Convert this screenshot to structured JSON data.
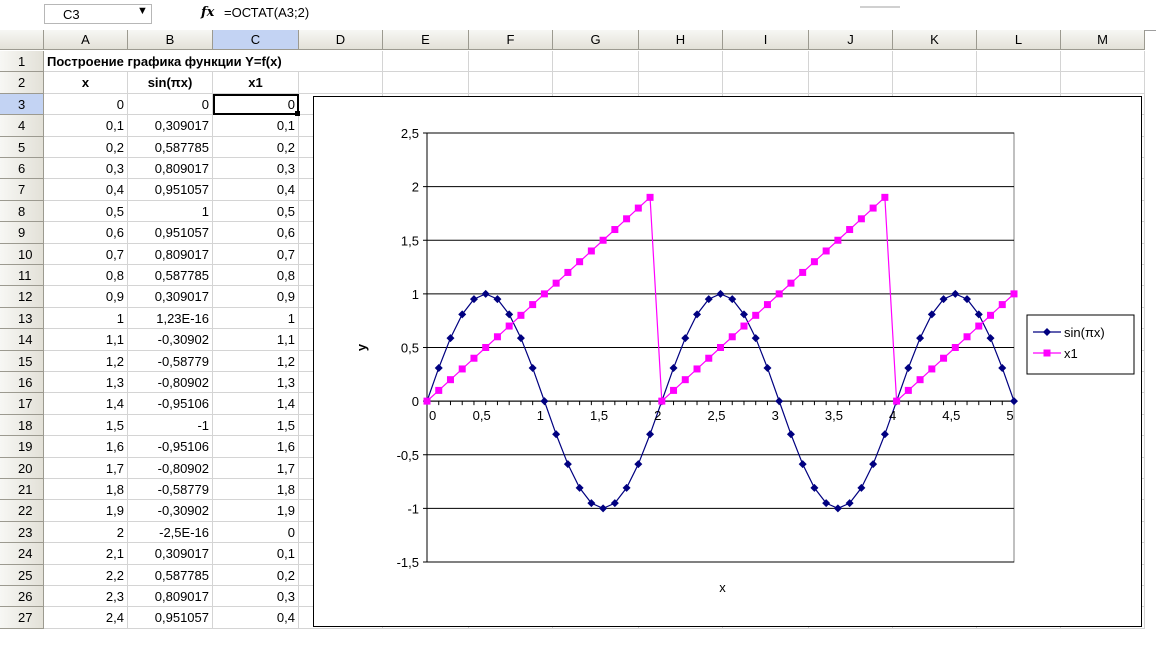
{
  "formula_bar": {
    "name_box": "C3",
    "dropdown_icon": "▼",
    "fx_label": "fx",
    "formula": "=ОСТАТ(A3;2)"
  },
  "columns": [
    "A",
    "B",
    "C",
    "D",
    "E",
    "F",
    "G",
    "H",
    "I",
    "J",
    "K",
    "L",
    "M"
  ],
  "selected_column": "C",
  "rows": [
    {
      "n": "1",
      "a": "Построение графика функции Y=f(x)",
      "b": "",
      "c": ""
    },
    {
      "n": "2",
      "a": "x",
      "b": "sin(πx)",
      "c": "x1"
    },
    {
      "n": "3",
      "a": "0",
      "b": "0",
      "c": "0"
    },
    {
      "n": "4",
      "a": "0,1",
      "b": "0,309017",
      "c": "0,1"
    },
    {
      "n": "5",
      "a": "0,2",
      "b": "0,587785",
      "c": "0,2"
    },
    {
      "n": "6",
      "a": "0,3",
      "b": "0,809017",
      "c": "0,3"
    },
    {
      "n": "7",
      "a": "0,4",
      "b": "0,951057",
      "c": "0,4"
    },
    {
      "n": "8",
      "a": "0,5",
      "b": "1",
      "c": "0,5"
    },
    {
      "n": "9",
      "a": "0,6",
      "b": "0,951057",
      "c": "0,6"
    },
    {
      "n": "10",
      "a": "0,7",
      "b": "0,809017",
      "c": "0,7"
    },
    {
      "n": "11",
      "a": "0,8",
      "b": "0,587785",
      "c": "0,8"
    },
    {
      "n": "12",
      "a": "0,9",
      "b": "0,309017",
      "c": "0,9"
    },
    {
      "n": "13",
      "a": "1",
      "b": "1,23E-16",
      "c": "1"
    },
    {
      "n": "14",
      "a": "1,1",
      "b": "-0,30902",
      "c": "1,1"
    },
    {
      "n": "15",
      "a": "1,2",
      "b": "-0,58779",
      "c": "1,2"
    },
    {
      "n": "16",
      "a": "1,3",
      "b": "-0,80902",
      "c": "1,3"
    },
    {
      "n": "17",
      "a": "1,4",
      "b": "-0,95106",
      "c": "1,4"
    },
    {
      "n": "18",
      "a": "1,5",
      "b": "-1",
      "c": "1,5"
    },
    {
      "n": "19",
      "a": "1,6",
      "b": "-0,95106",
      "c": "1,6"
    },
    {
      "n": "20",
      "a": "1,7",
      "b": "-0,80902",
      "c": "1,7"
    },
    {
      "n": "21",
      "a": "1,8",
      "b": "-0,58779",
      "c": "1,8"
    },
    {
      "n": "22",
      "a": "1,9",
      "b": "-0,30902",
      "c": "1,9"
    },
    {
      "n": "23",
      "a": "2",
      "b": "-2,5E-16",
      "c": "0"
    },
    {
      "n": "24",
      "a": "2,1",
      "b": "0,309017",
      "c": "0,1"
    },
    {
      "n": "25",
      "a": "2,2",
      "b": "0,587785",
      "c": "0,2"
    },
    {
      "n": "26",
      "a": "2,3",
      "b": "0,809017",
      "c": "0,3"
    },
    {
      "n": "27",
      "a": "2,4",
      "b": "0,951057",
      "c": "0,4"
    }
  ],
  "chart_data": {
    "type": "line",
    "xlabel": "x",
    "ylabel": "y",
    "x_ticks": [
      "0",
      "0,5",
      "1",
      "1,5",
      "2",
      "2,5",
      "3",
      "3,5",
      "4",
      "4,5",
      "5"
    ],
    "y_ticks": [
      "2,5",
      "2",
      "1,5",
      "1",
      "0,5",
      "0",
      "-0,5",
      "-1",
      "-1,5"
    ],
    "xlim": [
      0,
      5
    ],
    "ylim": [
      -1.5,
      2.5
    ],
    "grid": "horizontal",
    "legend": "right",
    "x": [
      0,
      0.1,
      0.2,
      0.3,
      0.4,
      0.5,
      0.6,
      0.7,
      0.8,
      0.9,
      1,
      1.1,
      1.2,
      1.3,
      1.4,
      1.5,
      1.6,
      1.7,
      1.8,
      1.9,
      2,
      2.1,
      2.2,
      2.3,
      2.4,
      2.5,
      2.6,
      2.7,
      2.8,
      2.9,
      3,
      3.1,
      3.2,
      3.3,
      3.4,
      3.5,
      3.6,
      3.7,
      3.8,
      3.9,
      4,
      4.1,
      4.2,
      4.3,
      4.4,
      4.5,
      4.6,
      4.7,
      4.8,
      4.9,
      5
    ],
    "series": [
      {
        "name": "sin(πx)",
        "color": "#000080",
        "marker": "diamond",
        "values": [
          0,
          0.309017,
          0.587785,
          0.809017,
          0.951057,
          1,
          0.951057,
          0.809017,
          0.587785,
          0.309017,
          0,
          -0.30902,
          -0.58779,
          -0.80902,
          -0.95106,
          -1,
          -0.95106,
          -0.80902,
          -0.58779,
          -0.30902,
          0,
          0.309017,
          0.587785,
          0.809017,
          0.951057,
          1,
          0.951057,
          0.809017,
          0.587785,
          0.309017,
          0,
          -0.30902,
          -0.58779,
          -0.80902,
          -0.95106,
          -1,
          -0.95106,
          -0.80902,
          -0.58779,
          -0.30902,
          0,
          0.309017,
          0.587785,
          0.809017,
          0.951057,
          1,
          0.951057,
          0.809017,
          0.587785,
          0.309017,
          0
        ]
      },
      {
        "name": "x1",
        "color": "#ff00ff",
        "marker": "square",
        "values": [
          0,
          0.1,
          0.2,
          0.3,
          0.4,
          0.5,
          0.6,
          0.7,
          0.8,
          0.9,
          1,
          1.1,
          1.2,
          1.3,
          1.4,
          1.5,
          1.6,
          1.7,
          1.8,
          1.9,
          0,
          0.1,
          0.2,
          0.3,
          0.4,
          0.5,
          0.6,
          0.7,
          0.8,
          0.9,
          1,
          1.1,
          1.2,
          1.3,
          1.4,
          1.5,
          1.6,
          1.7,
          1.8,
          1.9,
          0,
          0.1,
          0.2,
          0.3,
          0.4,
          0.5,
          0.6,
          0.7,
          0.8,
          0.9,
          1
        ]
      }
    ]
  }
}
